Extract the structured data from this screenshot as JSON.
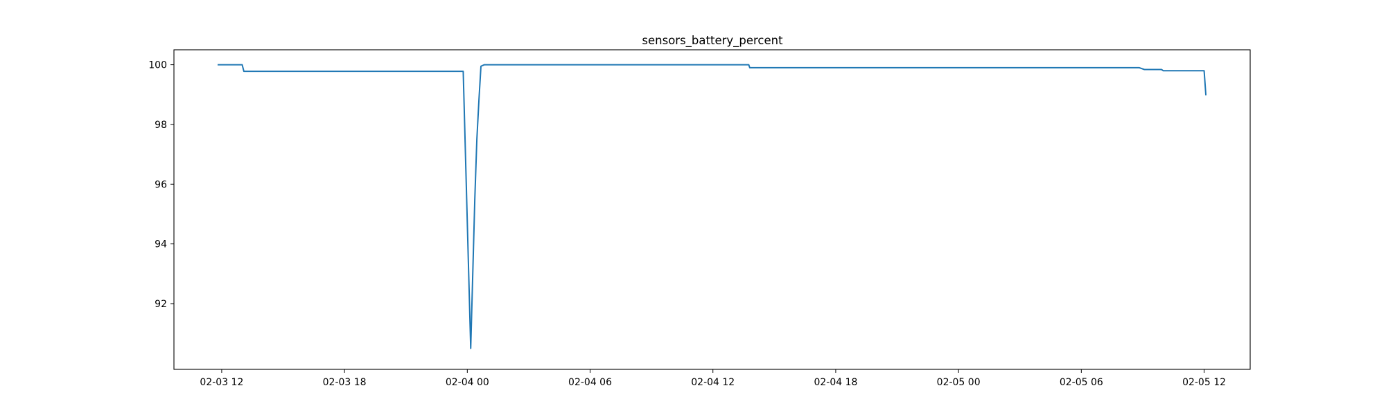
{
  "chart_data": {
    "type": "line",
    "title": "sensors_battery_percent",
    "xlabel": "",
    "ylabel": "",
    "xlim": [
      "2026-02-03 09:40",
      "2026-02-05 14:15"
    ],
    "ylim": [
      89.8,
      100.5
    ],
    "x_ticks": [
      {
        "x": "2026-02-03 12:00",
        "label": "02-03 12"
      },
      {
        "x": "2026-02-03 18:00",
        "label": "02-03 18"
      },
      {
        "x": "2026-02-04 00:00",
        "label": "02-04 00"
      },
      {
        "x": "2026-02-04 06:00",
        "label": "02-04 06"
      },
      {
        "x": "2026-02-04 12:00",
        "label": "02-04 12"
      },
      {
        "x": "2026-02-04 18:00",
        "label": "02-04 18"
      },
      {
        "x": "2026-02-05 00:00",
        "label": "02-05 00"
      },
      {
        "x": "2026-02-05 06:00",
        "label": "02-05 06"
      },
      {
        "x": "2026-02-05 12:00",
        "label": "02-05 12"
      }
    ],
    "y_ticks": [
      92,
      94,
      96,
      98,
      100
    ],
    "grid": false,
    "legend": "none",
    "series": [
      {
        "color": "#1f77b4",
        "points": [
          {
            "x": "2026-02-03 11:50",
            "y": 100.0
          },
          {
            "x": "2026-02-03 13:00",
            "y": 100.0
          },
          {
            "x": "2026-02-03 13:05",
            "y": 99.78
          },
          {
            "x": "2026-02-03 23:48",
            "y": 99.78
          },
          {
            "x": "2026-02-04 00:10",
            "y": 90.5
          },
          {
            "x": "2026-02-04 00:16",
            "y": 93.0
          },
          {
            "x": "2026-02-04 00:22",
            "y": 95.5
          },
          {
            "x": "2026-02-04 00:28",
            "y": 97.5
          },
          {
            "x": "2026-02-04 00:34",
            "y": 98.8
          },
          {
            "x": "2026-02-04 00:40",
            "y": 99.95
          },
          {
            "x": "2026-02-04 00:50",
            "y": 100.0
          },
          {
            "x": "2026-02-04 13:45",
            "y": 100.0
          },
          {
            "x": "2026-02-04 13:48",
            "y": 99.9
          },
          {
            "x": "2026-02-05 08:50",
            "y": 99.9
          },
          {
            "x": "2026-02-05 09:05",
            "y": 99.84
          },
          {
            "x": "2026-02-05 09:55",
            "y": 99.84
          },
          {
            "x": "2026-02-05 10:00",
            "y": 99.8
          },
          {
            "x": "2026-02-05 12:00",
            "y": 99.8
          },
          {
            "x": "2026-02-05 12:05",
            "y": 99.0
          }
        ]
      }
    ]
  }
}
